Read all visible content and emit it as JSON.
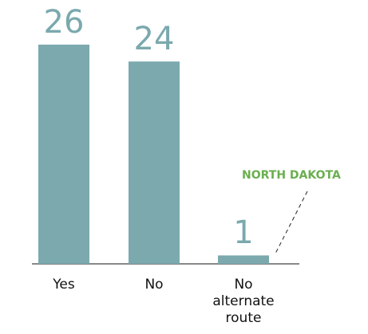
{
  "chart_data": {
    "type": "bar",
    "categories": [
      "Yes",
      "No",
      "No alternate route"
    ],
    "values": [
      26,
      24,
      1
    ],
    "color": "#7ba9ae",
    "annotations": [
      "NORTH DAKOTA"
    ],
    "annotation_color": "#6aaf4f"
  }
}
